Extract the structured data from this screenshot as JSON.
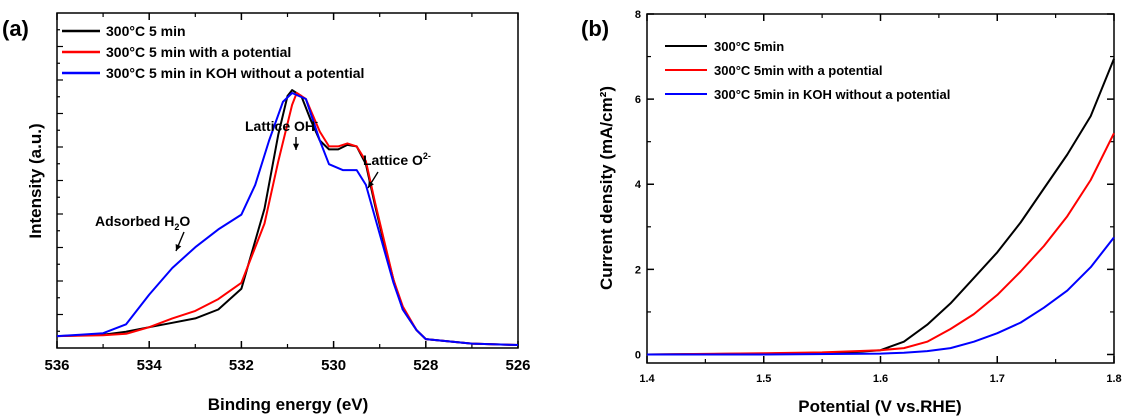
{
  "chart_data": [
    {
      "panel_label": "(a)",
      "type": "line",
      "xlabel": "Binding energy (eV)",
      "ylabel": "Intensity (a.u.)",
      "xlim": [
        536,
        526
      ],
      "x_reversed": true,
      "ylim": [
        0,
        1.13
      ],
      "y_tick_labels_shown": false,
      "xticks": [
        "536",
        "534",
        "532",
        "530",
        "528",
        "526"
      ],
      "legend_position": "top-left",
      "series": [
        {
          "name": "300°C 5 min",
          "color": "#000000",
          "points": [
            [
              536,
              0.04
            ],
            [
              535,
              0.045
            ],
            [
              534.5,
              0.055
            ],
            [
              534,
              0.07
            ],
            [
              533.5,
              0.085
            ],
            [
              533,
              0.1
            ],
            [
              532.5,
              0.13
            ],
            [
              532,
              0.2
            ],
            [
              531.5,
              0.47
            ],
            [
              531.2,
              0.72
            ],
            [
              531,
              0.85
            ],
            [
              530.9,
              0.87
            ],
            [
              530.7,
              0.85
            ],
            [
              530.5,
              0.77
            ],
            [
              530.3,
              0.7
            ],
            [
              530.1,
              0.67
            ],
            [
              529.9,
              0.67
            ],
            [
              529.7,
              0.685
            ],
            [
              529.5,
              0.68
            ],
            [
              529.3,
              0.62
            ],
            [
              529.1,
              0.48
            ],
            [
              528.9,
              0.35
            ],
            [
              528.7,
              0.23
            ],
            [
              528.5,
              0.13
            ],
            [
              528.2,
              0.06
            ],
            [
              528,
              0.03
            ],
            [
              527,
              0.015
            ],
            [
              526,
              0.01
            ]
          ]
        },
        {
          "name": "300°C 5 min with a potential",
          "color": "#ff0000",
          "points": [
            [
              536,
              0.04
            ],
            [
              535,
              0.043
            ],
            [
              534.5,
              0.048
            ],
            [
              534,
              0.07
            ],
            [
              533.5,
              0.1
            ],
            [
              533,
              0.125
            ],
            [
              532.5,
              0.165
            ],
            [
              532,
              0.22
            ],
            [
              531.5,
              0.42
            ],
            [
              531.2,
              0.63
            ],
            [
              530.9,
              0.82
            ],
            [
              530.8,
              0.86
            ],
            [
              530.6,
              0.84
            ],
            [
              530.3,
              0.73
            ],
            [
              530.1,
              0.68
            ],
            [
              529.9,
              0.68
            ],
            [
              529.7,
              0.69
            ],
            [
              529.5,
              0.68
            ],
            [
              529.3,
              0.63
            ],
            [
              529.1,
              0.49
            ],
            [
              528.9,
              0.36
            ],
            [
              528.7,
              0.23
            ],
            [
              528.5,
              0.14
            ],
            [
              528.2,
              0.06
            ],
            [
              528,
              0.03
            ],
            [
              527,
              0.015
            ],
            [
              526,
              0.01
            ]
          ]
        },
        {
          "name": "300°C 5 min in KOH without a potential",
          "color": "#0000ff",
          "points": [
            [
              536,
              0.04
            ],
            [
              535.5,
              0.045
            ],
            [
              535,
              0.05
            ],
            [
              534.5,
              0.08
            ],
            [
              534,
              0.18
            ],
            [
              533.5,
              0.27
            ],
            [
              533,
              0.34
            ],
            [
              532.5,
              0.4
            ],
            [
              532,
              0.45
            ],
            [
              531.7,
              0.55
            ],
            [
              531.4,
              0.7
            ],
            [
              531.1,
              0.83
            ],
            [
              530.9,
              0.86
            ],
            [
              530.6,
              0.84
            ],
            [
              530.3,
              0.7
            ],
            [
              530.1,
              0.62
            ],
            [
              529.8,
              0.6
            ],
            [
              529.5,
              0.6
            ],
            [
              529.3,
              0.55
            ],
            [
              529.1,
              0.44
            ],
            [
              528.9,
              0.33
            ],
            [
              528.7,
              0.22
            ],
            [
              528.5,
              0.13
            ],
            [
              528.2,
              0.06
            ],
            [
              528,
              0.03
            ],
            [
              527,
              0.015
            ],
            [
              526,
              0.01
            ]
          ]
        }
      ],
      "annotations": [
        {
          "text": "Lattice OH",
          "sup": "-",
          "points_to": [
            530.9,
            0.87
          ]
        },
        {
          "text": "Lattice O",
          "sup": "2-",
          "points_to": [
            529.4,
            0.69
          ]
        },
        {
          "text": "Adsorbed H",
          "sub": "2",
          "suffix": "O",
          "points_to": [
            533.3,
            0.3
          ]
        }
      ]
    },
    {
      "panel_label": "(b)",
      "type": "line",
      "xlabel": "Potential (V vs.RHE)",
      "ylabel": "Current density (mA/cm²)",
      "xlim": [
        1.4,
        1.8
      ],
      "ylim": [
        -0.2,
        8
      ],
      "xticks": [
        "1.4",
        "1.5",
        "1.6",
        "1.7",
        "1.8"
      ],
      "yticks": [
        "0",
        "2",
        "4",
        "6",
        "8"
      ],
      "legend_position": "top-left",
      "series": [
        {
          "name": "300°C 5min",
          "color": "#000000",
          "points": [
            [
              1.4,
              0.0
            ],
            [
              1.5,
              0.02
            ],
            [
              1.55,
              0.04
            ],
            [
              1.58,
              0.06
            ],
            [
              1.6,
              0.1
            ],
            [
              1.62,
              0.3
            ],
            [
              1.64,
              0.7
            ],
            [
              1.66,
              1.2
            ],
            [
              1.68,
              1.8
            ],
            [
              1.7,
              2.4
            ],
            [
              1.72,
              3.1
            ],
            [
              1.74,
              3.9
            ],
            [
              1.76,
              4.7
            ],
            [
              1.78,
              5.6
            ],
            [
              1.8,
              6.95
            ]
          ]
        },
        {
          "name": "300°C 5min with a potential",
          "color": "#ff0000",
          "points": [
            [
              1.4,
              0.0
            ],
            [
              1.5,
              0.03
            ],
            [
              1.55,
              0.05
            ],
            [
              1.6,
              0.1
            ],
            [
              1.62,
              0.15
            ],
            [
              1.64,
              0.3
            ],
            [
              1.66,
              0.6
            ],
            [
              1.68,
              0.95
            ],
            [
              1.7,
              1.4
            ],
            [
              1.72,
              1.95
            ],
            [
              1.74,
              2.55
            ],
            [
              1.76,
              3.25
            ],
            [
              1.78,
              4.1
            ],
            [
              1.8,
              5.2
            ]
          ]
        },
        {
          "name": "300°C 5min in KOH without a potential",
          "color": "#0000ff",
          "points": [
            [
              1.4,
              0.0
            ],
            [
              1.5,
              0.0
            ],
            [
              1.6,
              0.02
            ],
            [
              1.62,
              0.04
            ],
            [
              1.64,
              0.08
            ],
            [
              1.66,
              0.15
            ],
            [
              1.68,
              0.3
            ],
            [
              1.7,
              0.5
            ],
            [
              1.72,
              0.75
            ],
            [
              1.74,
              1.1
            ],
            [
              1.76,
              1.5
            ],
            [
              1.78,
              2.05
            ],
            [
              1.8,
              2.75
            ]
          ]
        }
      ]
    }
  ]
}
